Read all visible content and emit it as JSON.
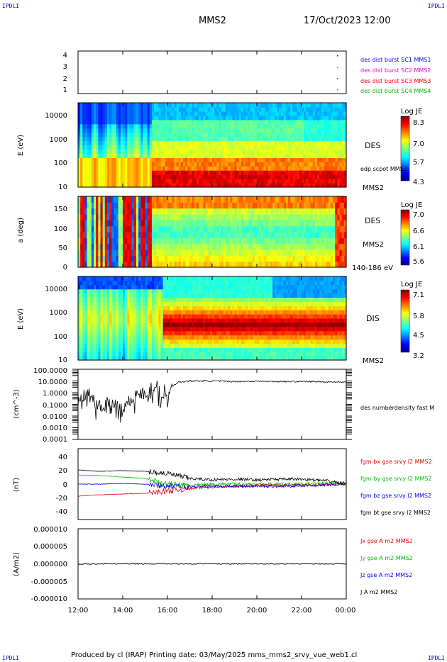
{
  "corners": {
    "tl": "IPDLI",
    "tr": "IPDLI",
    "bl": "IPDLI",
    "br": "IPDLI"
  },
  "header": {
    "spacecraft": "MMS2",
    "datetime": "17/Oct/2023 12:00"
  },
  "footer": {
    "text": "Produced by cl (IRAP)   Printing date: 03/May/2025   mms_mms2_srvy_vue_web1.cl"
  },
  "time_axis": {
    "labels": [
      "12:00",
      "14:00",
      "16:00",
      "18:00",
      "20:00",
      "22:00",
      "00:00"
    ]
  },
  "colors": {
    "mms1": "#0000ee",
    "mms2": "#dd00dd",
    "mms3": "#ee0000",
    "mms4": "#00cc00",
    "bx": "#ee0000",
    "by": "#00bb00",
    "bz": "#0000ee",
    "bt": "#000000"
  },
  "panels": {
    "burst": {
      "yticks": [
        "4",
        "3",
        "2",
        "1"
      ],
      "legend": [
        "des dist burst SC1 MMS1",
        "des dist burst SC2 MMS2",
        "des dist burst SC3 MMS3",
        "des dist burst SC4 MMS4"
      ]
    },
    "des_energy": {
      "ylabel": "E (eV)",
      "yticks": [
        "10000",
        "1000",
        "100",
        "10"
      ],
      "species": "DES",
      "sub": "edp scpot MMS2",
      "sc": "MMS2",
      "cbar_title": "Log JE",
      "cbar_ticks": [
        "8.3",
        "7.0",
        "5.7",
        "4.3"
      ]
    },
    "des_pitch": {
      "ylabel": "a (deg)",
      "yticks": [
        "150",
        "100",
        "50",
        "0"
      ],
      "species": "DES",
      "sc": "MMS2",
      "range": "140-186 eV",
      "cbar_title": "Log JE",
      "cbar_ticks": [
        "7.0",
        "6.6",
        "6.1",
        "5.6"
      ]
    },
    "dis_energy": {
      "ylabel": "E (eV)",
      "yticks": [
        "10000",
        "1000",
        "100",
        "10"
      ],
      "species": "DIS",
      "sc": "MMS2",
      "cbar_title": "Log JE",
      "cbar_ticks": [
        "7.1",
        "5.8",
        "4.5",
        "3.2"
      ]
    },
    "density": {
      "ylabel": "(cm^-3)",
      "yticks": [
        "100.0000",
        "10.0000",
        "1.0000",
        "0.1000",
        "0.0100",
        "0.0010",
        "0.0001"
      ],
      "legend": "des numberdensity fast M"
    },
    "bfield": {
      "ylabel": "(nT)",
      "yticks": [
        "40",
        "20",
        "0",
        "-20",
        "-40"
      ],
      "legend": [
        "fgm bx gse srvy l2 MMS2",
        "fgm by gse srvy l2 MMS2",
        "fgm bz gse srvy l2 MMS2",
        "fgm bt gse srvy l2 MMS2"
      ]
    },
    "current": {
      "ylabel": "(A/m2)",
      "yticks": [
        "0.000010",
        "0.000005",
        "0.000000",
        "-0.000005",
        "-0.000010"
      ],
      "legend": [
        "Jx gse A m2 MMS2",
        "Jy gse A m2 MMS2",
        "Jz gse A m2 MMS2",
        "J A m2 MMS2"
      ]
    }
  },
  "chart_data": [
    {
      "type": "scatter",
      "name": "burst",
      "x_range": [
        "12:00",
        "00:00"
      ],
      "ylim": [
        0.5,
        4.5
      ],
      "series": [
        {
          "name": "des dist burst SC1 MMS1",
          "x": [],
          "y": []
        },
        {
          "name": "des dist burst SC2 MMS2",
          "x": [],
          "y": []
        },
        {
          "name": "des dist burst SC3 MMS3",
          "x": [],
          "y": []
        },
        {
          "name": "des dist burst SC4 MMS4",
          "x": [],
          "y": []
        }
      ]
    },
    {
      "type": "heatmap",
      "name": "DES energy spectrogram",
      "y_scale": "log",
      "ylim": [
        10,
        30000
      ],
      "cbar_range": [
        4.3,
        8.3
      ]
    },
    {
      "type": "heatmap",
      "name": "DES pitch angle",
      "ylim": [
        0,
        180
      ],
      "cbar_range": [
        5.6,
        7.0
      ]
    },
    {
      "type": "heatmap",
      "name": "DIS energy spectrogram",
      "y_scale": "log",
      "ylim": [
        10,
        30000
      ],
      "cbar_range": [
        3.2,
        7.1
      ]
    },
    {
      "type": "line",
      "name": "density",
      "y_scale": "log",
      "ylim": [
        0.0001,
        100
      ],
      "x_hours": [
        0.0,
        0.5,
        1.0,
        1.5,
        2.0,
        2.5,
        3.0,
        3.3,
        3.5,
        3.7,
        4.0,
        4.5,
        5.0,
        6.0,
        7.0,
        8.0,
        9.0,
        10.0,
        11.0,
        12.0
      ],
      "y": [
        0.5,
        0.6,
        0.05,
        0.3,
        0.05,
        0.5,
        1.0,
        2.0,
        5.0,
        0.8,
        2.0,
        8.0,
        10.0,
        10.0,
        9.0,
        9.5,
        9.0,
        9.0,
        8.5,
        8.0
      ]
    },
    {
      "type": "line",
      "name": "bfield",
      "ylim": [
        -50,
        50
      ],
      "x_hours": [
        0,
        1,
        2,
        3,
        4,
        5,
        6,
        7,
        8,
        9,
        10,
        11,
        12
      ],
      "series": [
        {
          "name": "fgm bx gse srvy l2 MMS2",
          "y": [
            -17,
            -15,
            -14,
            -13,
            -10,
            -6,
            -4,
            -3,
            -2,
            -2,
            -2,
            -1,
            0
          ]
        },
        {
          "name": "fgm by gse srvy l2 MMS2",
          "y": [
            13,
            12,
            10,
            8,
            0,
            -2,
            0,
            0,
            0,
            0,
            0,
            1,
            0
          ]
        },
        {
          "name": "fgm bz gse srvy l2 MMS2",
          "y": [
            0,
            0,
            1,
            0,
            -3,
            -4,
            -3,
            -3,
            -3,
            -3,
            -2,
            -1,
            0
          ]
        },
        {
          "name": "fgm bt gse srvy l2 MMS2",
          "y": [
            20,
            18,
            19,
            18,
            15,
            8,
            6,
            7,
            6,
            7,
            7,
            5,
            1
          ]
        }
      ]
    },
    {
      "type": "line",
      "name": "current",
      "ylim": [
        -1e-05,
        1e-05
      ],
      "x_hours": [
        0,
        12
      ],
      "y": [
        0,
        0
      ]
    }
  ]
}
